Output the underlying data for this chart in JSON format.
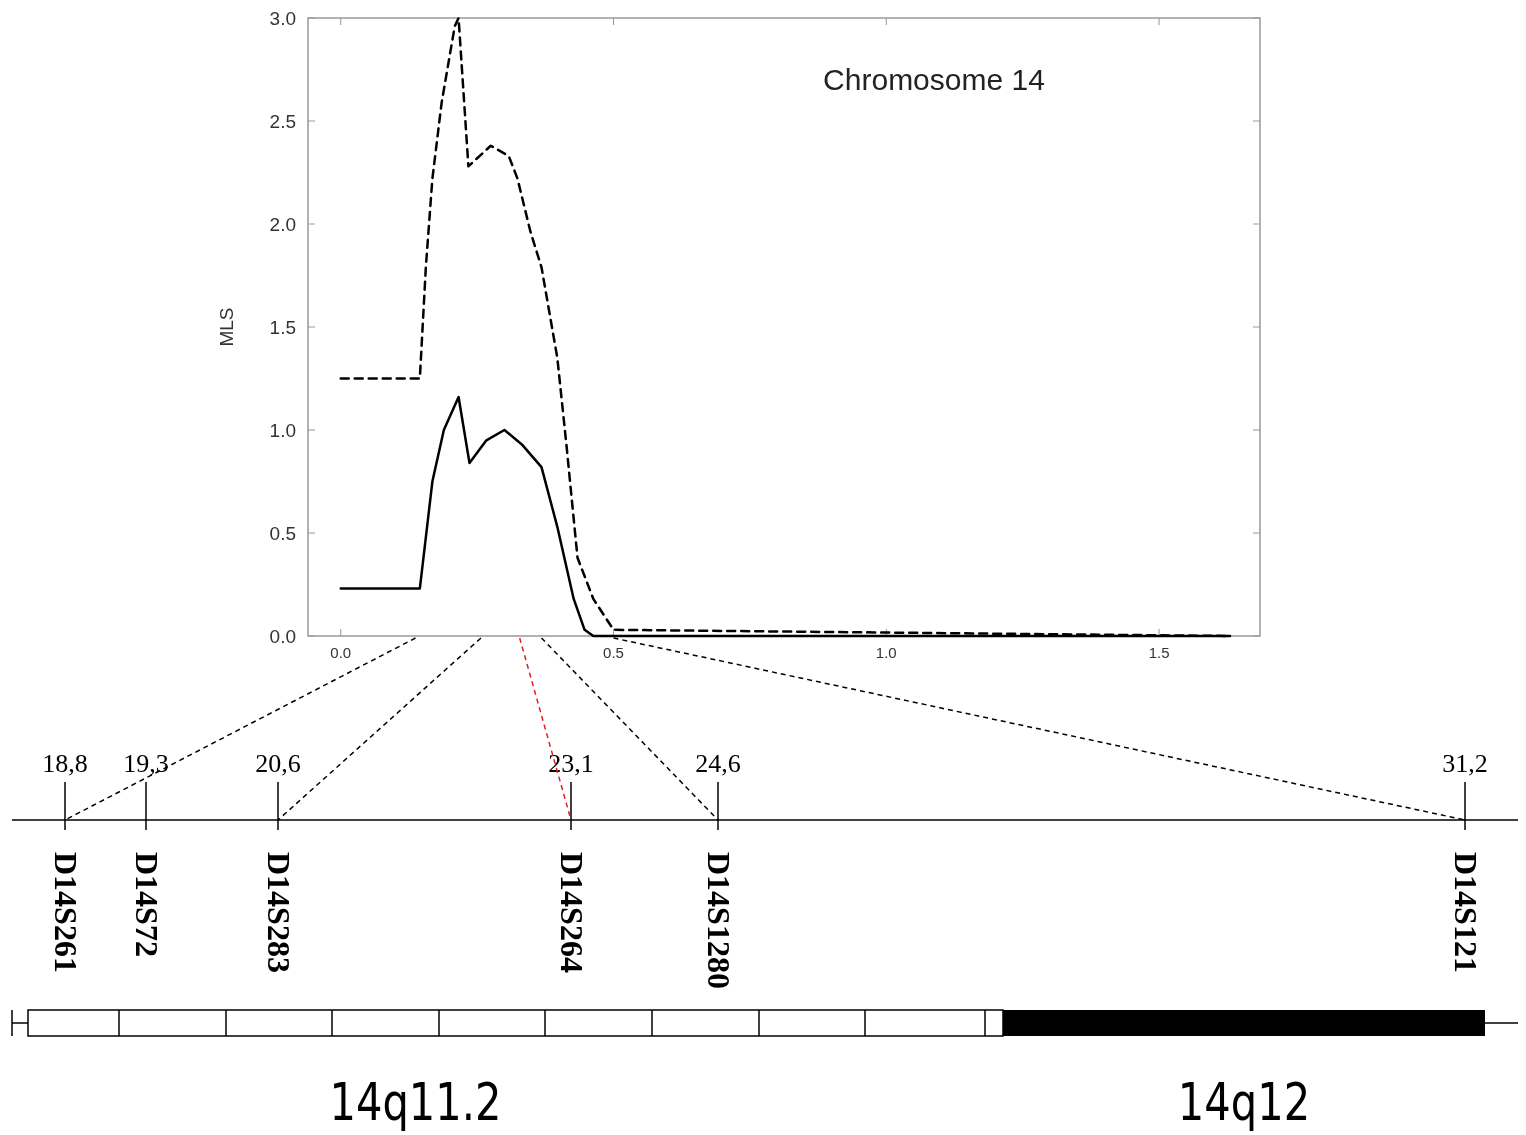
{
  "chart_data": [
    {
      "type": "line",
      "title": "Chromosome 14",
      "ylabel": "MLS",
      "xlim": [
        -0.06,
        1.685
      ],
      "ylim": [
        0,
        3
      ],
      "xticks": [
        {
          "value": 0,
          "label": "0.0"
        },
        {
          "value": 0.5,
          "label": "0.5"
        },
        {
          "value": 1,
          "label": "1.0"
        },
        {
          "value": 1.5,
          "label": "1.5"
        }
      ],
      "yticks": [
        {
          "value": 0,
          "label": "0.0"
        },
        {
          "value": 0.5,
          "label": "0.5"
        },
        {
          "value": 1,
          "label": "1.0"
        },
        {
          "value": 1.5,
          "label": "1.5"
        },
        {
          "value": 2,
          "label": "2.0"
        },
        {
          "value": 2.5,
          "label": "2.5"
        },
        {
          "value": 3,
          "label": "3.0"
        }
      ],
      "grid": false,
      "series": [
        {
          "color": "#000000",
          "line_style": "dashed",
          "x": [
            0,
            0.145,
            0.156,
            0.168,
            0.185,
            0.209,
            0.216,
            0.234,
            0.275,
            0.308,
            0.324,
            0.348,
            0.368,
            0.397,
            0.414,
            0.434,
            0.463,
            0.5,
            1.63
          ],
          "values": [
            1.25,
            1.25,
            1.79,
            2.22,
            2.59,
            2.96,
            3.0,
            2.28,
            2.38,
            2.33,
            2.22,
            1.96,
            1.79,
            1.35,
            0.92,
            0.38,
            0.18,
            0.03,
            0
          ]
        },
        {
          "color": "#000000",
          "line_style": "solid",
          "x": [
            0,
            0.145,
            0.168,
            0.189,
            0.216,
            0.236,
            0.267,
            0.3,
            0.332,
            0.368,
            0.397,
            0.427,
            0.447,
            0.463,
            1.63
          ],
          "values": [
            0.23,
            0.23,
            0.75,
            1.0,
            1.16,
            0.84,
            0.95,
            1.0,
            0.93,
            0.82,
            0.53,
            0.18,
            0.03,
            0,
            0
          ]
        }
      ]
    },
    {
      "type": "other",
      "categories": [
        "D14S261",
        "D14S72",
        "D14S283",
        "D14S264",
        "D14S1280",
        "D14S121"
      ],
      "annotations": [
        "18,8",
        "19,3",
        "20,6",
        "23,1",
        "24,6",
        "31,2",
        "14q11.2",
        "14q12"
      ]
    }
  ]
}
